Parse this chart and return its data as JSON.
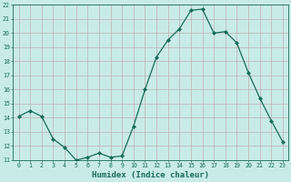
{
  "x": [
    0,
    1,
    2,
    3,
    4,
    5,
    6,
    7,
    8,
    9,
    10,
    11,
    12,
    13,
    14,
    15,
    16,
    17,
    18,
    19,
    20,
    21,
    22,
    23
  ],
  "y": [
    14.1,
    14.5,
    14.1,
    12.5,
    11.9,
    11.0,
    11.2,
    11.5,
    11.2,
    11.3,
    13.4,
    16.0,
    18.3,
    19.5,
    20.3,
    21.6,
    21.7,
    20.0,
    20.1,
    19.3,
    17.2,
    15.4,
    13.8,
    12.3
  ],
  "line_color": "#1a6b5a",
  "marker": "D",
  "marker_size": 2,
  "bg_color": "#c8ebe8",
  "grid_color": "#c0b0b0",
  "xlabel": "Humidex (Indice chaleur)",
  "ylim": [
    11,
    22
  ],
  "xlim_min": -0.5,
  "xlim_max": 23.5,
  "yticks": [
    11,
    12,
    13,
    14,
    15,
    16,
    17,
    18,
    19,
    20,
    21,
    22
  ],
  "xticks": [
    0,
    1,
    2,
    3,
    4,
    5,
    6,
    7,
    8,
    9,
    10,
    11,
    12,
    13,
    14,
    15,
    16,
    17,
    18,
    19,
    20,
    21,
    22,
    23
  ],
  "tick_fontsize": 4.8,
  "label_fontsize": 6.5,
  "linewidth": 0.9
}
